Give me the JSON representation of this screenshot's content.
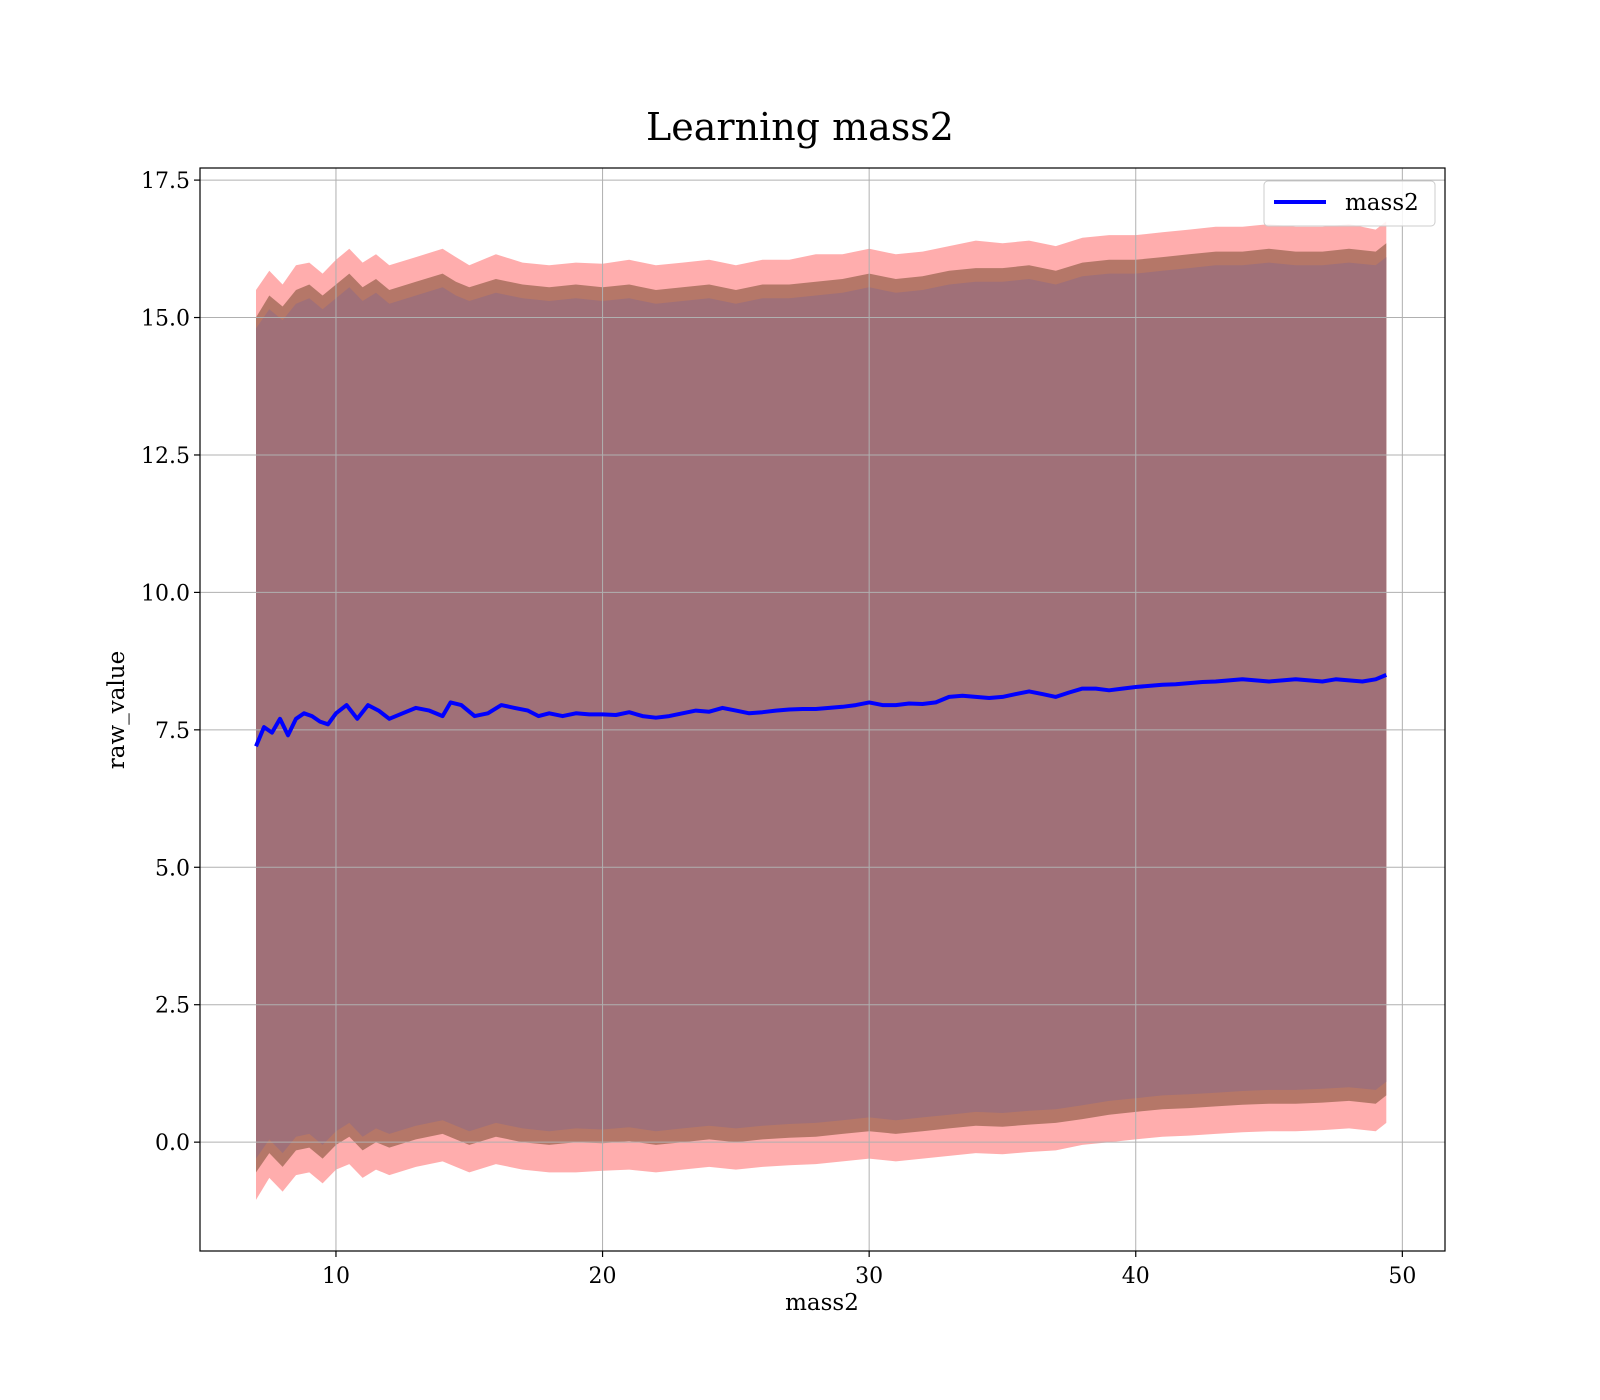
{
  "chart_data": {
    "type": "line",
    "title": "Learning mass2",
    "xlabel": "mass2",
    "ylabel": "raw_value",
    "xlim": [
      4.9,
      51.6
    ],
    "ylim": [
      -1.98,
      17.72
    ],
    "xticks": [
      10,
      20,
      30,
      40,
      50
    ],
    "yticks": [
      0.0,
      2.5,
      5.0,
      7.5,
      10.0,
      12.5,
      15.0,
      17.5
    ],
    "ytick_labels": [
      "0.0",
      "2.5",
      "5.0",
      "7.5",
      "10.0",
      "12.5",
      "15.0",
      "17.5"
    ],
    "xtick_labels": [
      "10",
      "20",
      "30",
      "40",
      "50"
    ],
    "grid": true,
    "legend": {
      "position": "upper right",
      "entries": [
        "mass2"
      ]
    },
    "series": [
      {
        "name": "mass2",
        "color": "#0000ff",
        "x": [
          7.0,
          7.3,
          7.6,
          7.9,
          8.2,
          8.5,
          8.8,
          9.1,
          9.4,
          9.7,
          10.0,
          10.4,
          10.8,
          11.2,
          11.6,
          12.0,
          12.5,
          13.0,
          13.5,
          14.0,
          14.3,
          14.7,
          15.2,
          15.7,
          16.2,
          16.7,
          17.2,
          17.6,
          18.0,
          18.5,
          19.0,
          19.5,
          20.0,
          20.5,
          21.0,
          21.5,
          22.0,
          22.5,
          23.0,
          23.5,
          24.0,
          24.5,
          25.0,
          25.5,
          26.0,
          26.5,
          27.0,
          27.5,
          28.0,
          28.5,
          29.0,
          29.5,
          30.0,
          30.5,
          31.0,
          31.5,
          32.0,
          32.5,
          33.0,
          33.5,
          34.0,
          34.5,
          35.0,
          35.5,
          36.0,
          36.5,
          37.0,
          37.5,
          38.0,
          38.5,
          39.0,
          39.5,
          40.0,
          40.5,
          41.0,
          41.5,
          42.0,
          42.5,
          43.0,
          43.5,
          44.0,
          44.5,
          45.0,
          45.5,
          46.0,
          46.5,
          47.0,
          47.5,
          48.0,
          48.5,
          49.0,
          49.4
        ],
        "values": [
          7.2,
          7.55,
          7.45,
          7.7,
          7.4,
          7.7,
          7.8,
          7.75,
          7.65,
          7.6,
          7.8,
          7.95,
          7.7,
          7.95,
          7.85,
          7.7,
          7.8,
          7.9,
          7.85,
          7.75,
          8.0,
          7.95,
          7.75,
          7.8,
          7.95,
          7.9,
          7.85,
          7.75,
          7.8,
          7.75,
          7.8,
          7.78,
          7.78,
          7.77,
          7.82,
          7.75,
          7.72,
          7.75,
          7.8,
          7.85,
          7.83,
          7.9,
          7.85,
          7.8,
          7.82,
          7.85,
          7.87,
          7.88,
          7.88,
          7.9,
          7.92,
          7.95,
          8.0,
          7.95,
          7.95,
          7.98,
          7.97,
          8.0,
          8.1,
          8.12,
          8.1,
          8.08,
          8.1,
          8.15,
          8.2,
          8.15,
          8.1,
          8.18,
          8.25,
          8.25,
          8.22,
          8.25,
          8.28,
          8.3,
          8.32,
          8.33,
          8.35,
          8.37,
          8.38,
          8.4,
          8.42,
          8.4,
          8.38,
          8.4,
          8.42,
          8.4,
          8.38,
          8.42,
          8.4,
          8.38,
          8.42,
          8.5
        ]
      }
    ],
    "bands": [
      {
        "name": "outer",
        "color": "#ff9999",
        "opacity": 0.8,
        "x": [
          7.0,
          7.5,
          8.0,
          8.5,
          9.0,
          9.5,
          10.0,
          10.5,
          11.0,
          11.5,
          12.0,
          13.0,
          14.0,
          14.5,
          15.0,
          16.0,
          17.0,
          18.0,
          19.0,
          20.0,
          21.0,
          22.0,
          23.0,
          24.0,
          25.0,
          26.0,
          27.0,
          28.0,
          29.0,
          30.0,
          31.0,
          32.0,
          33.0,
          34.0,
          35.0,
          36.0,
          37.0,
          38.0,
          39.0,
          40.0,
          41.0,
          42.0,
          43.0,
          44.0,
          45.0,
          46.0,
          47.0,
          48.0,
          49.0,
          49.4
        ],
        "upper": [
          15.5,
          15.85,
          15.6,
          15.95,
          16.0,
          15.8,
          16.05,
          16.25,
          16.0,
          16.15,
          15.95,
          16.1,
          16.25,
          16.1,
          15.95,
          16.15,
          16.0,
          15.95,
          16.0,
          15.98,
          16.05,
          15.95,
          16.0,
          16.05,
          15.95,
          16.05,
          16.05,
          16.15,
          16.15,
          16.25,
          16.15,
          16.2,
          16.3,
          16.4,
          16.35,
          16.4,
          16.3,
          16.45,
          16.5,
          16.5,
          16.55,
          16.6,
          16.65,
          16.65,
          16.7,
          16.65,
          16.65,
          16.7,
          16.6,
          16.75
        ],
        "lower": [
          -1.05,
          -0.65,
          -0.9,
          -0.6,
          -0.55,
          -0.75,
          -0.5,
          -0.4,
          -0.65,
          -0.5,
          -0.6,
          -0.45,
          -0.35,
          -0.45,
          -0.55,
          -0.4,
          -0.5,
          -0.55,
          -0.55,
          -0.52,
          -0.5,
          -0.55,
          -0.5,
          -0.45,
          -0.5,
          -0.45,
          -0.42,
          -0.4,
          -0.35,
          -0.3,
          -0.35,
          -0.3,
          -0.25,
          -0.2,
          -0.22,
          -0.18,
          -0.15,
          -0.05,
          0.0,
          0.05,
          0.1,
          0.12,
          0.15,
          0.18,
          0.2,
          0.2,
          0.22,
          0.25,
          0.2,
          0.35
        ]
      },
      {
        "name": "middle",
        "color": "#a86d5c",
        "opacity": 0.85,
        "x": [
          7.0,
          7.5,
          8.0,
          8.5,
          9.0,
          9.5,
          10.0,
          10.5,
          11.0,
          11.5,
          12.0,
          13.0,
          14.0,
          14.5,
          15.0,
          16.0,
          17.0,
          18.0,
          19.0,
          20.0,
          21.0,
          22.0,
          23.0,
          24.0,
          25.0,
          26.0,
          27.0,
          28.0,
          29.0,
          30.0,
          31.0,
          32.0,
          33.0,
          34.0,
          35.0,
          36.0,
          37.0,
          38.0,
          39.0,
          40.0,
          41.0,
          42.0,
          43.0,
          44.0,
          45.0,
          46.0,
          47.0,
          48.0,
          49.0,
          49.4
        ],
        "upper": [
          15.0,
          15.4,
          15.2,
          15.5,
          15.6,
          15.4,
          15.6,
          15.8,
          15.55,
          15.7,
          15.5,
          15.65,
          15.8,
          15.65,
          15.55,
          15.7,
          15.6,
          15.55,
          15.6,
          15.55,
          15.6,
          15.5,
          15.55,
          15.6,
          15.5,
          15.6,
          15.6,
          15.65,
          15.7,
          15.8,
          15.7,
          15.75,
          15.85,
          15.9,
          15.9,
          15.95,
          15.85,
          16.0,
          16.05,
          16.05,
          16.1,
          16.15,
          16.2,
          16.2,
          16.25,
          16.2,
          16.2,
          16.25,
          16.2,
          16.35
        ],
        "lower": [
          -0.55,
          -0.2,
          -0.45,
          -0.15,
          -0.1,
          -0.3,
          -0.05,
          0.1,
          -0.15,
          0.0,
          -0.1,
          0.05,
          0.15,
          0.05,
          -0.05,
          0.1,
          0.0,
          -0.05,
          0.0,
          -0.02,
          0.02,
          -0.05,
          0.0,
          0.05,
          0.0,
          0.05,
          0.08,
          0.1,
          0.15,
          0.2,
          0.15,
          0.2,
          0.25,
          0.3,
          0.28,
          0.32,
          0.35,
          0.42,
          0.5,
          0.55,
          0.6,
          0.62,
          0.65,
          0.68,
          0.7,
          0.7,
          0.72,
          0.75,
          0.7,
          0.85
        ]
      },
      {
        "name": "inner",
        "color": "#a07078",
        "opacity": 1.0,
        "x": [
          7.0,
          7.5,
          8.0,
          8.5,
          9.0,
          9.5,
          10.0,
          10.5,
          11.0,
          11.5,
          12.0,
          13.0,
          14.0,
          14.5,
          15.0,
          16.0,
          17.0,
          18.0,
          19.0,
          20.0,
          21.0,
          22.0,
          23.0,
          24.0,
          25.0,
          26.0,
          27.0,
          28.0,
          29.0,
          30.0,
          31.0,
          32.0,
          33.0,
          34.0,
          35.0,
          36.0,
          37.0,
          38.0,
          39.0,
          40.0,
          41.0,
          42.0,
          43.0,
          44.0,
          45.0,
          46.0,
          47.0,
          48.0,
          49.0,
          49.4
        ],
        "upper": [
          14.8,
          15.15,
          14.95,
          15.25,
          15.35,
          15.15,
          15.35,
          15.55,
          15.3,
          15.45,
          15.25,
          15.4,
          15.55,
          15.4,
          15.3,
          15.45,
          15.35,
          15.3,
          15.35,
          15.3,
          15.35,
          15.25,
          15.3,
          15.35,
          15.25,
          15.35,
          15.35,
          15.4,
          15.45,
          15.55,
          15.45,
          15.5,
          15.6,
          15.65,
          15.65,
          15.7,
          15.6,
          15.75,
          15.8,
          15.8,
          15.85,
          15.9,
          15.95,
          15.95,
          16.0,
          15.95,
          15.95,
          16.0,
          15.95,
          16.1
        ],
        "lower": [
          -0.3,
          0.05,
          -0.2,
          0.1,
          0.15,
          -0.05,
          0.2,
          0.35,
          0.1,
          0.25,
          0.15,
          0.3,
          0.4,
          0.3,
          0.2,
          0.35,
          0.25,
          0.2,
          0.25,
          0.23,
          0.27,
          0.2,
          0.25,
          0.3,
          0.25,
          0.3,
          0.33,
          0.35,
          0.4,
          0.45,
          0.4,
          0.45,
          0.5,
          0.55,
          0.53,
          0.57,
          0.6,
          0.67,
          0.75,
          0.8,
          0.85,
          0.87,
          0.9,
          0.93,
          0.95,
          0.95,
          0.97,
          1.0,
          0.95,
          1.1
        ]
      }
    ]
  }
}
